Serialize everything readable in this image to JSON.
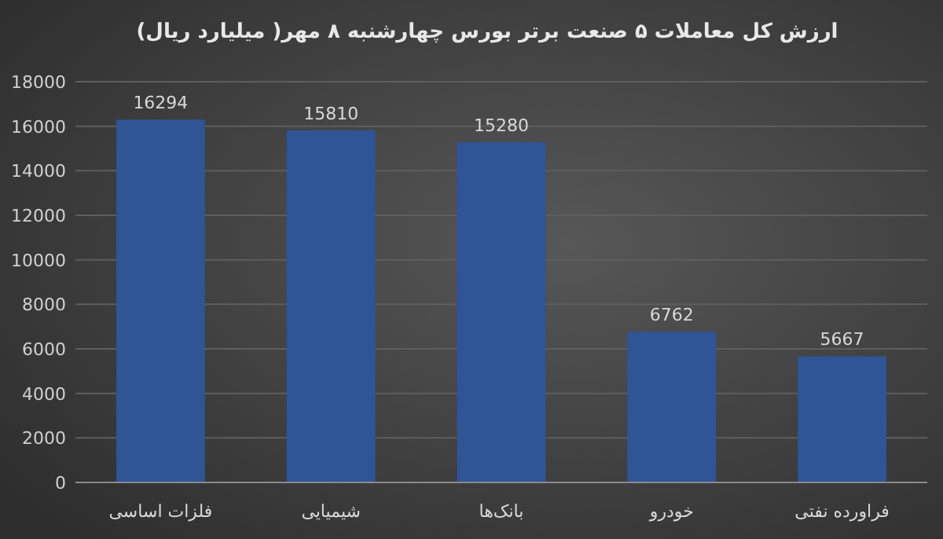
{
  "chart_data": {
    "type": "bar",
    "title": "ارزش کل معاملات ۵ صنعت برتر بورس چهارشنبه ۸ مهر( میلیارد ریال)",
    "categories": [
      "فلزات اساسی",
      "شیمیایی",
      "بانک‌ها",
      "خودرو",
      "فراورده نفتی"
    ],
    "values": [
      16294,
      15810,
      15280,
      6762,
      5667
    ],
    "color": "#2f5597",
    "ylim": [
      0,
      18000
    ],
    "yticks": [
      0,
      2000,
      4000,
      6000,
      8000,
      10000,
      12000,
      14000,
      16000,
      18000
    ],
    "grid": "y",
    "data_labels": true
  }
}
